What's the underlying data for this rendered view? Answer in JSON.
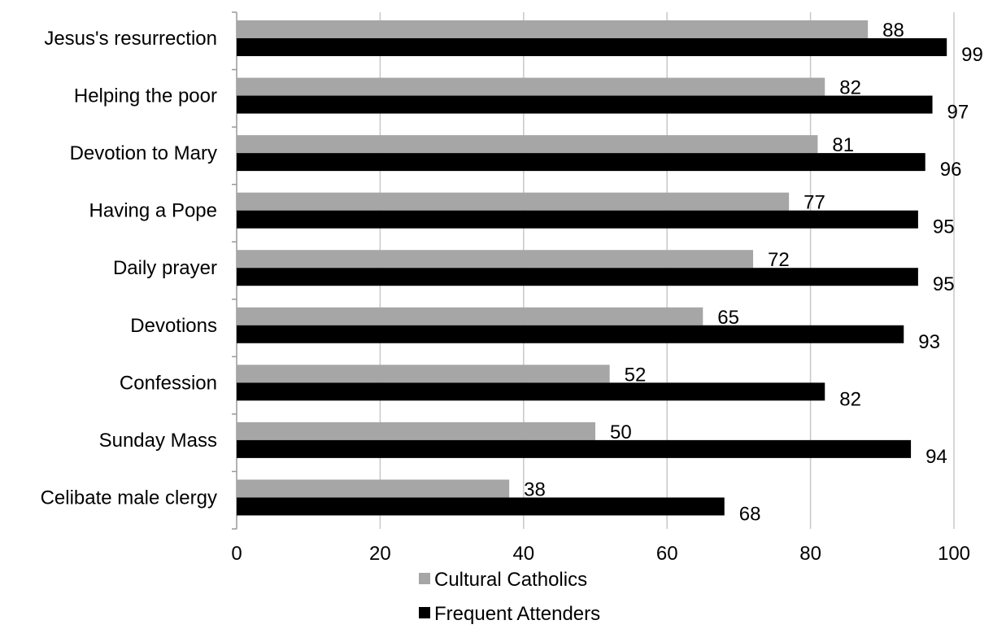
{
  "chart_data": {
    "type": "bar",
    "orientation": "horizontal",
    "categories": [
      "Jesus's resurrection",
      "Helping the poor",
      "Devotion to Mary",
      "Having a Pope",
      "Daily prayer",
      "Devotions",
      "Confession",
      "Sunday Mass",
      "Celibate male clergy"
    ],
    "series": [
      {
        "name": "Cultural Catholics",
        "color": "#a6a6a6",
        "values": [
          88,
          82,
          81,
          77,
          72,
          65,
          52,
          50,
          38
        ]
      },
      {
        "name": "Frequent Attenders",
        "color": "#000000",
        "values": [
          99,
          97,
          96,
          95,
          95,
          93,
          82,
          94,
          68
        ]
      }
    ],
    "x_ticks": [
      "0",
      "20",
      "40",
      "60",
      "80",
      "100"
    ],
    "xlim": [
      0,
      100
    ],
    "grid": true,
    "legend": "bottom",
    "title": "",
    "xlabel": "",
    "ylabel": ""
  }
}
